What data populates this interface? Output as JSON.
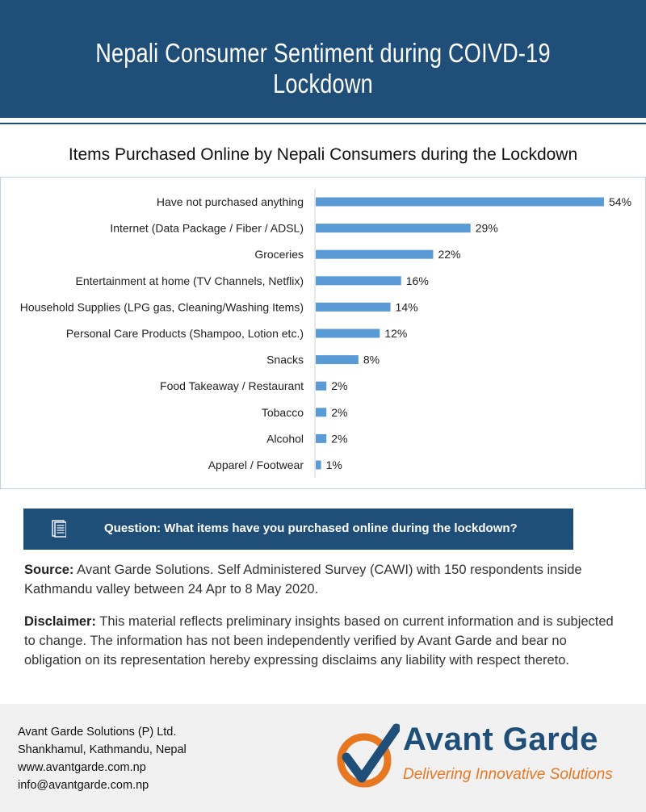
{
  "header": {
    "title": "Nepali Consumer Sentiment during COIVD-19 Lockdown"
  },
  "chart_data": {
    "type": "bar",
    "orientation": "horizontal",
    "title": "Items Purchased Online by Nepali Consumers during the Lockdown",
    "categories": [
      "Have not purchased anything",
      "Internet (Data Package / Fiber / ADSL)",
      "Groceries",
      "Entertainment at home (TV Channels, Netflix)",
      "Household Supplies (LPG gas, Cleaning/Washing Items)",
      "Personal Care Products (Shampoo, Lotion etc.)",
      "Snacks",
      "Food Takeaway / Restaurant",
      "Tobacco",
      "Alcohol",
      "Apparel / Footwear"
    ],
    "values": [
      54,
      29,
      22,
      16,
      14,
      12,
      8,
      2,
      2,
      2,
      1
    ],
    "data_labels": [
      "54%",
      "29%",
      "22%",
      "16%",
      "14%",
      "12%",
      "8%",
      "2%",
      "2%",
      "2%",
      "1%"
    ],
    "unit": "%",
    "bar_color": "#5b9bd5",
    "xlim": [
      0,
      54
    ],
    "grid": false,
    "legend": "none"
  },
  "question": {
    "icon": "document-icon",
    "text": "Question: What items have you purchased online during the lockdown?"
  },
  "notes": {
    "source_label": "Source:",
    "source_text": "Avant Garde Solutions. Self Administered Survey (CAWI) with 150 respondents inside Kathmandu valley between 24 Apr to 8 May 2020.",
    "disclaimer_label": "Disclaimer:",
    "disclaimer_text": "This material reflects preliminary insights based on current information and is subjected to change. The information has not been independently verified by Avant Garde and bear no obligation on its representation hereby expressing disclaims any liability with respect thereto."
  },
  "footer": {
    "address_lines": [
      "Avant Garde Solutions (P) Ltd.",
      "Shankhamul, Kathmandu, Nepal",
      "www.avantgarde.com.np",
      "info@avantgarde.com.np"
    ],
    "logo_name": "Avant Garde",
    "logo_tagline": "Delivering Innovative Solutions",
    "brand_colors": {
      "blue": "#1f4e79",
      "orange": "#e87722"
    }
  }
}
